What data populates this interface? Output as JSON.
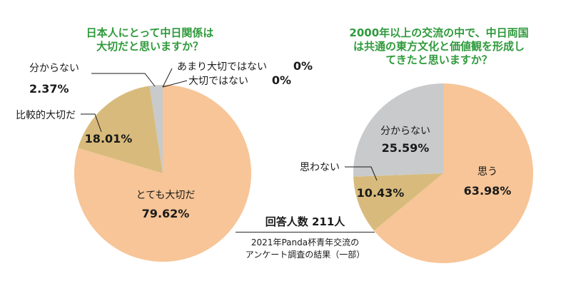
{
  "chart_data": [
    {
      "type": "pie",
      "title": [
        "日本人にとって中日関係は",
        "大切だと思いますか？"
      ],
      "slices": [
        {
          "label": "とても大切だ",
          "value": 79.62,
          "value_text": "79.62%",
          "color": "#f7c597"
        },
        {
          "label": "比較的大切だ",
          "value": 18.01,
          "value_text": "18.01%",
          "color": "#d8bb7c"
        },
        {
          "label": "分からない",
          "value": 2.37,
          "value_text": "2.37%",
          "color": "#c9cacb"
        },
        {
          "label": "あまり大切ではない",
          "value": 0,
          "value_text": "0%",
          "color": "#d8bb7c"
        },
        {
          "label": "大切ではない",
          "value": 0,
          "value_text": "0%",
          "color": "#d8bb7c"
        }
      ]
    },
    {
      "type": "pie",
      "title": [
        "2000年以上の交流の中で、中日両国",
        "は共通の東方文化と価値観を形成し",
        "てきたと思いますか？"
      ],
      "slices": [
        {
          "label": "思う",
          "value": 63.98,
          "value_text": "63.98%",
          "color": "#f7c597"
        },
        {
          "label": "思わない",
          "value": 10.43,
          "value_text": "10.43%",
          "color": "#d8bb7c"
        },
        {
          "label": "分からない",
          "value": 25.59,
          "value_text": "25.59%",
          "color": "#c9cacb"
        }
      ]
    }
  ],
  "survey": {
    "respondents": "回答人数 211人",
    "note_line1": "2021年Panda杯青年交流の",
    "note_line2": "アンケート調査の結果（一部）"
  }
}
